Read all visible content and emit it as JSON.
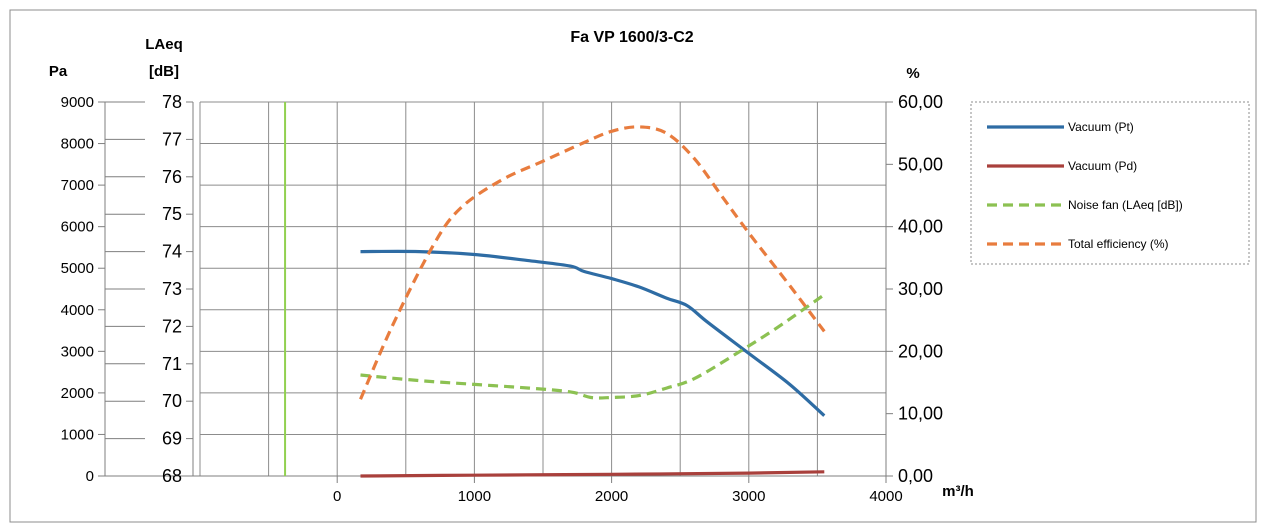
{
  "chart_data": {
    "type": "line",
    "title": "Fa VP 1600/3-C2",
    "x_axis": {
      "label": "m³/h",
      "range": [
        -1000,
        4000
      ],
      "ticks": [
        "0",
        "1000",
        "2000",
        "3000",
        "4000"
      ]
    },
    "y_axes": {
      "pa": {
        "label": "Pa",
        "range": [
          0,
          9000
        ],
        "ticks": [
          "0",
          "1000",
          "2000",
          "3000",
          "4000",
          "5000",
          "6000",
          "7000",
          "8000",
          "9000"
        ]
      },
      "laeq": {
        "label_line1": "LAeq",
        "label_line2": "[dB]",
        "range": [
          68,
          78
        ],
        "ticks": [
          "68",
          "69",
          "70",
          "71",
          "72",
          "73",
          "74",
          "75",
          "76",
          "77",
          "78"
        ]
      },
      "percent": {
        "label": "%",
        "range": [
          0,
          60
        ],
        "ticks": [
          "0,00",
          "10,00",
          "20,00",
          "30,00",
          "40,00",
          "50,00",
          "60,00"
        ]
      }
    },
    "grid": true,
    "legend_position": "right",
    "series": [
      {
        "name": "Vacuum (Pt)",
        "axis": "pa",
        "color": "#2e6ca4",
        "dash": "solid",
        "x": [
          170,
          600,
          1000,
          1400,
          1700,
          1800,
          2000,
          2200,
          2400,
          2550,
          2700,
          3000,
          3300,
          3550
        ],
        "y": [
          5400,
          5400,
          5330,
          5180,
          5050,
          4920,
          4750,
          4550,
          4280,
          4100,
          3700,
          2950,
          2200,
          1450
        ]
      },
      {
        "name": "Vacuum (Pd)",
        "axis": "pa",
        "color": "#a9403c",
        "dash": "solid",
        "x": [
          170,
          1000,
          2000,
          3000,
          3550
        ],
        "y": [
          0,
          20,
          40,
          70,
          100
        ]
      },
      {
        "name": "Noise fan (LAeq [dB])",
        "axis": "laeq",
        "color": "#8cc152",
        "dash": "dashed",
        "x": [
          170,
          600,
          1000,
          1400,
          1700,
          1850,
          2000,
          2200,
          2400,
          2600,
          2900,
          3200,
          3550
        ],
        "y": [
          70.7,
          70.55,
          70.45,
          70.35,
          70.25,
          70.1,
          70.1,
          70.15,
          70.35,
          70.6,
          71.25,
          71.95,
          72.85
        ]
      },
      {
        "name": "Total efficiency (%)",
        "axis": "percent",
        "color": "#e87c3e",
        "dash": "dashed",
        "x": [
          170,
          400,
          700,
          900,
          1200,
          1500,
          1800,
          2000,
          2200,
          2400,
          2600,
          2800,
          3000,
          3300,
          3550
        ],
        "y": [
          12.3,
          24,
          37,
          43,
          47.5,
          50.5,
          53.5,
          55.3,
          56,
          55,
          51,
          45,
          39,
          30.5,
          23.2
        ]
      }
    ],
    "vertical_marker": {
      "x": -380,
      "color": "#92d050"
    }
  }
}
